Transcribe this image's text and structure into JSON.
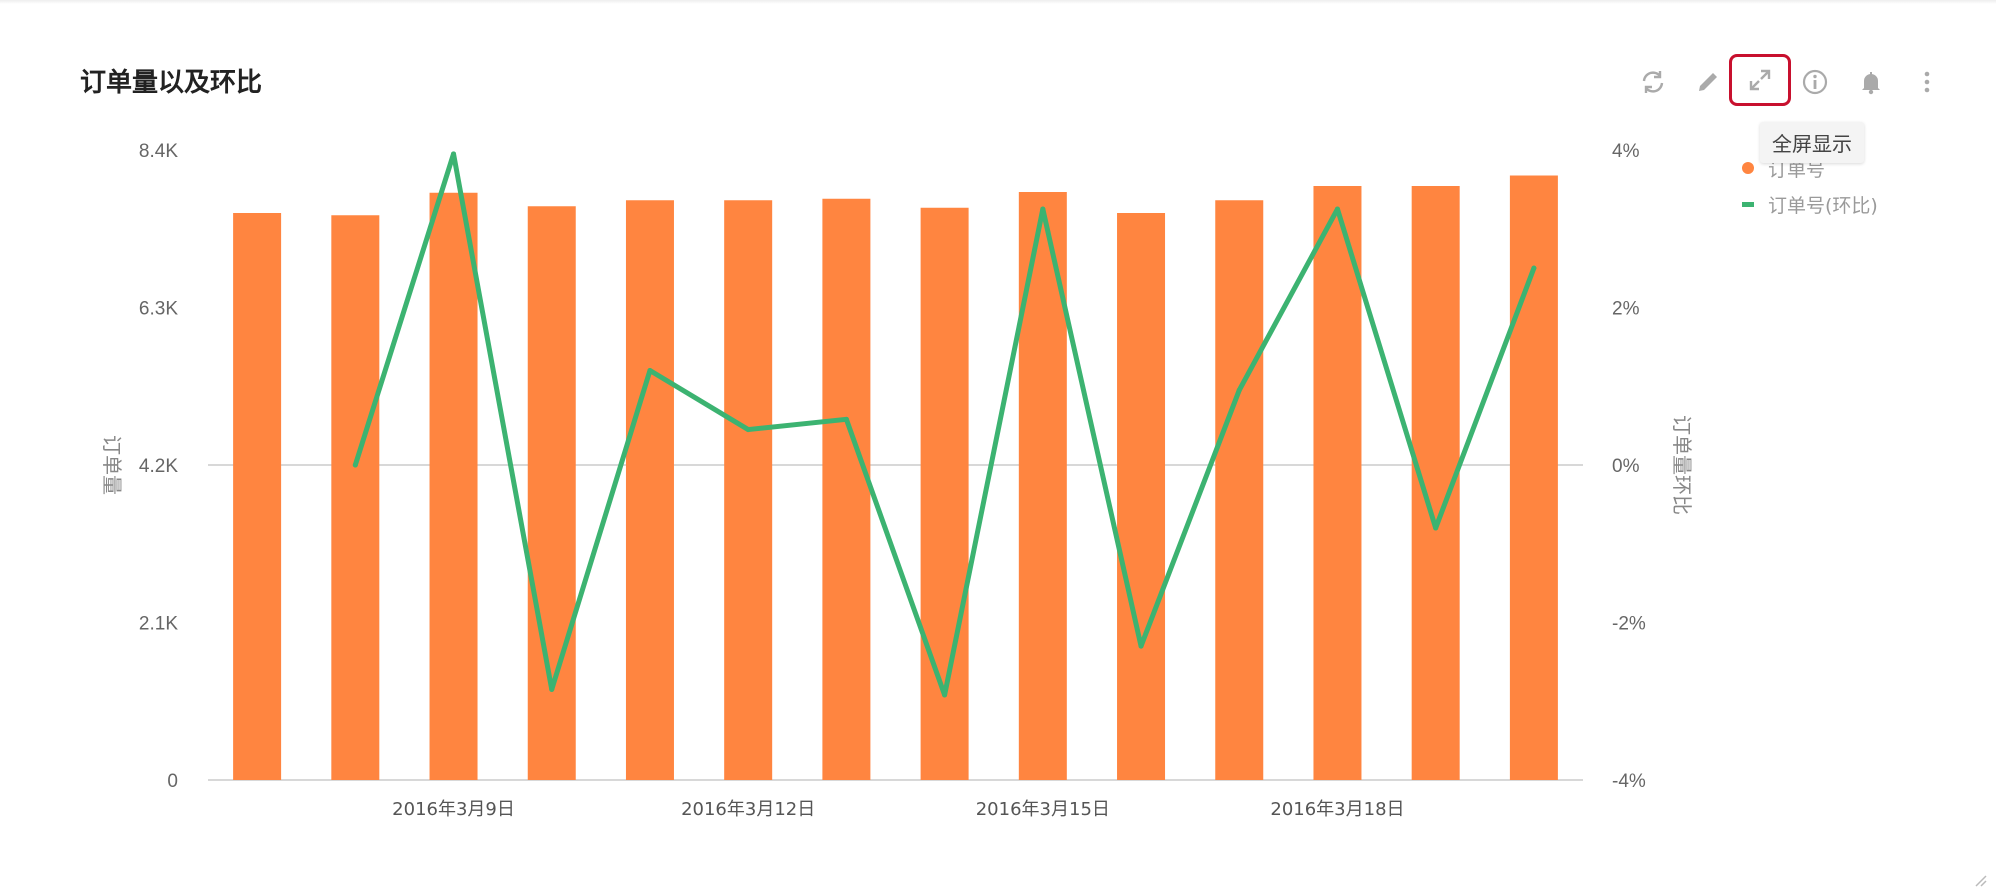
{
  "title": "订单量以及环比",
  "toolbar": {
    "buttons": [
      {
        "name": "refresh-icon",
        "label": "刷新"
      },
      {
        "name": "edit-icon",
        "label": "编辑"
      },
      {
        "name": "fullscreen-icon",
        "label": "全屏显示"
      },
      {
        "name": "info-icon",
        "label": "信息"
      },
      {
        "name": "bell-icon",
        "label": "提醒"
      },
      {
        "name": "more-icon",
        "label": "更多"
      }
    ],
    "tooltip": "全屏显示"
  },
  "colors": {
    "bar": "#ff8540",
    "line": "#3cb371",
    "highlight": "#c8102e"
  },
  "chart_data": {
    "type": "bar",
    "title": "订单量以及环比",
    "ylabel": "订单量",
    "y2label": "订单量环比",
    "x": [
      "2016-03-07",
      "2016-03-08",
      "2016-03-09",
      "2016-03-10",
      "2016-03-11",
      "2016-03-12",
      "2016-03-13",
      "2016-03-14",
      "2016-03-15",
      "2016-03-16",
      "2016-03-17",
      "2016-03-18",
      "2016-03-19",
      "2016-03-20"
    ],
    "x_tick_labels": [
      {
        "x": "2016-03-09",
        "label": "2016年3月9日"
      },
      {
        "x": "2016-03-12",
        "label": "2016年3月12日"
      },
      {
        "x": "2016-03-15",
        "label": "2016年3月15日"
      },
      {
        "x": "2016-03-18",
        "label": "2016年3月18日"
      }
    ],
    "ylim": [
      0,
      8400
    ],
    "y_ticks": [
      0,
      2100,
      4200,
      6300,
      8400
    ],
    "y_tick_labels": [
      "0",
      "2.1K",
      "4.2K",
      "6.3K",
      "8.4K"
    ],
    "y2lim": [
      -4,
      4
    ],
    "y2_ticks": [
      -4,
      -2,
      0,
      2,
      4
    ],
    "y2_tick_labels": [
      "-4%",
      "-2%",
      "0%",
      "2%",
      "4%"
    ],
    "grid": false,
    "legend_position": "top-right",
    "series": [
      {
        "name": "订单号",
        "type": "bar",
        "axis": "left",
        "values": [
          7560,
          7530,
          7830,
          7650,
          7730,
          7730,
          7750,
          7630,
          7840,
          7560,
          7730,
          7920,
          7920,
          8060
        ]
      },
      {
        "name": "订单号(环比)",
        "type": "line",
        "axis": "right",
        "values": [
          null,
          0.0,
          3.95,
          -2.85,
          1.2,
          0.45,
          0.58,
          -2.92,
          3.25,
          -2.3,
          0.95,
          3.25,
          -0.8,
          2.5
        ]
      }
    ]
  }
}
